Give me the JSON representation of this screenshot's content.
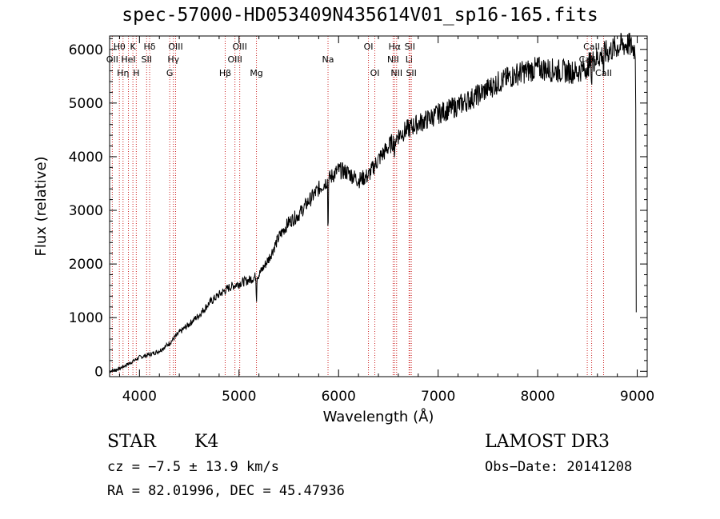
{
  "chart_data": {
    "type": "line",
    "title": "spec-57000-HD053409N435614V01_sp16-165.fits",
    "xlabel": "Wavelength (Å)",
    "ylabel": "Flux (relative)",
    "xlim": [
      3700,
      9100
    ],
    "ylim": [
      -100,
      6250
    ],
    "xticks": [
      4000,
      5000,
      6000,
      7000,
      8000,
      9000
    ],
    "yticks": [
      0,
      1000,
      2000,
      3000,
      4000,
      5000,
      6000
    ],
    "series": [
      {
        "name": "spectrum",
        "x": [
          3700,
          3800,
          3900,
          4000,
          4100,
          4200,
          4300,
          4400,
          4500,
          4600,
          4700,
          4800,
          4900,
          5000,
          5100,
          5200,
          5300,
          5400,
          5500,
          5600,
          5700,
          5800,
          5900,
          6000,
          6100,
          6200,
          6300,
          6400,
          6500,
          6600,
          6700,
          6800,
          6900,
          7000,
          7200,
          7400,
          7600,
          7800,
          8000,
          8200,
          8400,
          8500,
          8600,
          8700,
          8800,
          8900,
          8980
        ],
        "y": [
          0,
          50,
          150,
          260,
          310,
          380,
          520,
          720,
          880,
          1050,
          1270,
          1430,
          1560,
          1640,
          1700,
          1800,
          2100,
          2500,
          2780,
          2920,
          3170,
          3400,
          3580,
          3750,
          3700,
          3560,
          3650,
          3950,
          4180,
          4400,
          4520,
          4620,
          4700,
          4800,
          4950,
          5150,
          5380,
          5550,
          5650,
          5600,
          5580,
          5700,
          5850,
          5950,
          6050,
          6100,
          6000
        ]
      }
    ],
    "lines": [
      {
        "name": "OII",
        "wavelength": 3727,
        "row": 2
      },
      {
        "name": "Hθ",
        "wavelength": 3798,
        "row": 1
      },
      {
        "name": "Hη",
        "wavelength": 3835,
        "row": 3
      },
      {
        "name": "HeI",
        "wavelength": 3889,
        "row": 2
      },
      {
        "name": "K",
        "wavelength": 3934,
        "row": 1
      },
      {
        "name": "H",
        "wavelength": 3968,
        "row": 3
      },
      {
        "name": "SII",
        "wavelength": 4072,
        "row": 2
      },
      {
        "name": "Hδ",
        "wavelength": 4102,
        "row": 1
      },
      {
        "name": "G",
        "wavelength": 4304,
        "row": 3
      },
      {
        "name": "Hγ",
        "wavelength": 4341,
        "row": 2
      },
      {
        "name": "OIII",
        "wavelength": 4363,
        "row": 1
      },
      {
        "name": "Hβ",
        "wavelength": 4861,
        "row": 3
      },
      {
        "name": "OIII",
        "wavelength": 4959,
        "row": 2
      },
      {
        "name": "OIII",
        "wavelength": 5007,
        "row": 1
      },
      {
        "name": "Mg",
        "wavelength": 5175,
        "row": 3
      },
      {
        "name": "Na",
        "wavelength": 5894,
        "row": 2
      },
      {
        "name": "OI",
        "wavelength": 6300,
        "row": 1
      },
      {
        "name": "OI",
        "wavelength": 6364,
        "row": 3
      },
      {
        "name": "NII",
        "wavelength": 6548,
        "row": 2
      },
      {
        "name": "Hα",
        "wavelength": 6563,
        "row": 1
      },
      {
        "name": "NII",
        "wavelength": 6583,
        "row": 3
      },
      {
        "name": "Li",
        "wavelength": 6708,
        "row": 2
      },
      {
        "name": "SII",
        "wavelength": 6716,
        "row": 1
      },
      {
        "name": "SII",
        "wavelength": 6731,
        "row": 3
      },
      {
        "name": "CaII",
        "wavelength": 8498,
        "row": 2
      },
      {
        "name": "CaII",
        "wavelength": 8542,
        "row": 1
      },
      {
        "name": "CaII",
        "wavelength": 8662,
        "row": 3
      }
    ]
  },
  "info": {
    "class": "STAR",
    "subclass": "K4",
    "survey": "LAMOST DR3",
    "cz": "cz = −7.5 ± 13.9 km/s",
    "obs_date": "Obs−Date: 20141208",
    "coords": "RA =  82.01996, DEC =  45.47936"
  },
  "colors": {
    "line_marker": "#cc2222",
    "spectrum": "#000000"
  }
}
